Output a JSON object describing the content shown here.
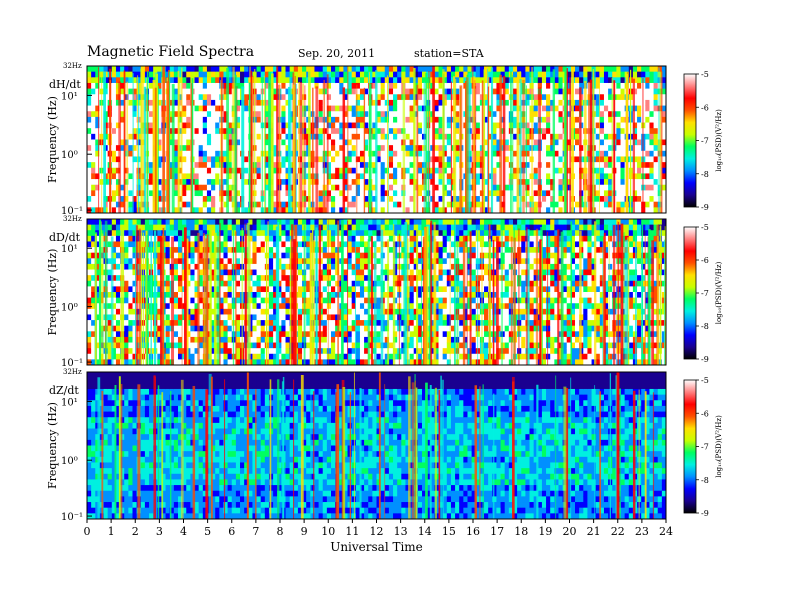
{
  "header": {
    "title": "Magnetic  Field  Spectra",
    "date": "Sep. 20, 2011",
    "station": "station=STA"
  },
  "chart_data": {
    "type": "heatmap",
    "title": "Magnetic  Field  Spectra",
    "xlabel": "Universal Time",
    "ylabel": "Frequency  (Hz)",
    "x_range": [
      0,
      24
    ],
    "x_ticks": [
      "0",
      "1",
      "2",
      "3",
      "4",
      "5",
      "6",
      "7",
      "8",
      "9",
      "10",
      "11",
      "12",
      "13",
      "14",
      "15",
      "16",
      "17",
      "18",
      "19",
      "20",
      "21",
      "22",
      "23",
      "24"
    ],
    "y_scale": "log",
    "y_ticks": [
      "10⁻¹",
      "10⁰",
      "10¹"
    ],
    "y_top_label": "32Hz",
    "colorbar": {
      "label": "log₁₀(PSD)(V²/Hz)",
      "range": [
        -9,
        -5
      ],
      "ticks": [
        "-5",
        "-6",
        "-7",
        "-8",
        "-9"
      ],
      "colors": [
        "#000000",
        "#1a0090",
        "#0000ff",
        "#0090ff",
        "#00f0e0",
        "#00ff60",
        "#c8ff00",
        "#ffe000",
        "#ff5000",
        "#ff0000",
        "#ff8080",
        "#ffffff"
      ]
    },
    "panels": [
      {
        "name": "dH/dt"
      },
      {
        "name": "dD/dt"
      },
      {
        "name": "dZ/dt"
      }
    ]
  }
}
